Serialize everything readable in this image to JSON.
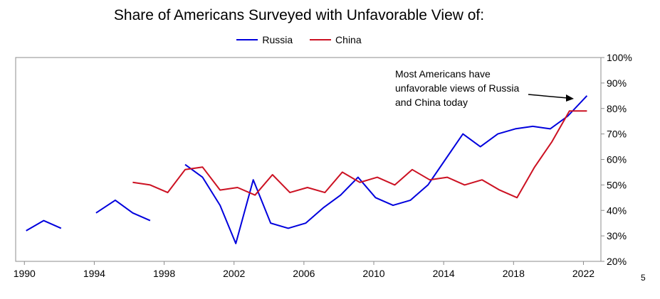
{
  "chart_data": {
    "type": "line",
    "title": "Share of Americans Surveyed with Unfavorable View of:",
    "xlabel": "",
    "ylabel": "",
    "xlim": [
      1989.5,
      2023
    ],
    "ylim": [
      20,
      100
    ],
    "x_ticks": [
      1990,
      1994,
      1998,
      2002,
      2006,
      2010,
      2014,
      2018,
      2022
    ],
    "y_ticks": [
      20,
      30,
      40,
      50,
      60,
      70,
      80,
      90,
      100
    ],
    "y_tick_labels": [
      "20%",
      "30%",
      "40%",
      "50%",
      "60%",
      "70%",
      "80%",
      "90%",
      "100%"
    ],
    "grid": false,
    "legend_position": "top",
    "series": [
      {
        "name": "Russia",
        "color": "#0000dd",
        "segments": [
          [
            [
              1990.1,
              32
            ],
            [
              1991.1,
              36
            ],
            [
              1992.1,
              33
            ]
          ],
          [
            [
              1994.1,
              39
            ],
            [
              1995.2,
              44
            ],
            [
              1996.2,
              39
            ],
            [
              1997.2,
              36
            ]
          ],
          [
            [
              1999.2,
              58
            ],
            [
              2000.2,
              53
            ],
            [
              2001.2,
              42
            ],
            [
              2002.1,
              27
            ],
            [
              2003.1,
              52
            ],
            [
              2004.1,
              35
            ],
            [
              2005.1,
              33
            ],
            [
              2006.1,
              35
            ],
            [
              2007.1,
              41
            ],
            [
              2008.1,
              46
            ],
            [
              2009.1,
              53
            ],
            [
              2010.1,
              45
            ],
            [
              2011.1,
              42
            ],
            [
              2012.1,
              44
            ],
            [
              2013.1,
              50
            ],
            [
              2014.1,
              60
            ],
            [
              2015.1,
              70
            ],
            [
              2016.1,
              65
            ],
            [
              2017.1,
              70
            ],
            [
              2018.1,
              72
            ],
            [
              2019.1,
              73
            ],
            [
              2020.1,
              72
            ],
            [
              2021.1,
              77
            ],
            [
              2022.2,
              85
            ]
          ]
        ]
      },
      {
        "name": "China",
        "color": "#cc1122",
        "segments": [
          [
            [
              1996.2,
              51
            ],
            [
              1997.2,
              50
            ],
            [
              1998.2,
              47
            ],
            [
              1999.2,
              56
            ],
            [
              2000.2,
              57
            ],
            [
              2001.2,
              48
            ],
            [
              2002.2,
              49
            ],
            [
              2003.2,
              46
            ],
            [
              2004.2,
              54
            ],
            [
              2005.2,
              47
            ],
            [
              2006.2,
              49
            ],
            [
              2007.2,
              47
            ],
            [
              2008.2,
              55
            ],
            [
              2009.2,
              51
            ],
            [
              2010.2,
              53
            ],
            [
              2011.2,
              50
            ],
            [
              2012.2,
              56
            ],
            [
              2013.2,
              52
            ],
            [
              2014.2,
              53
            ],
            [
              2015.2,
              50
            ],
            [
              2016.2,
              52
            ],
            [
              2017.2,
              48
            ],
            [
              2018.2,
              45
            ],
            [
              2019.2,
              57
            ],
            [
              2020.2,
              67
            ],
            [
              2021.2,
              79
            ],
            [
              2022.2,
              79
            ]
          ]
        ]
      }
    ],
    "annotation": {
      "lines": [
        "Most Americans have",
        "unfavorable views of Russia",
        "and China today"
      ]
    }
  },
  "page_number": "5"
}
